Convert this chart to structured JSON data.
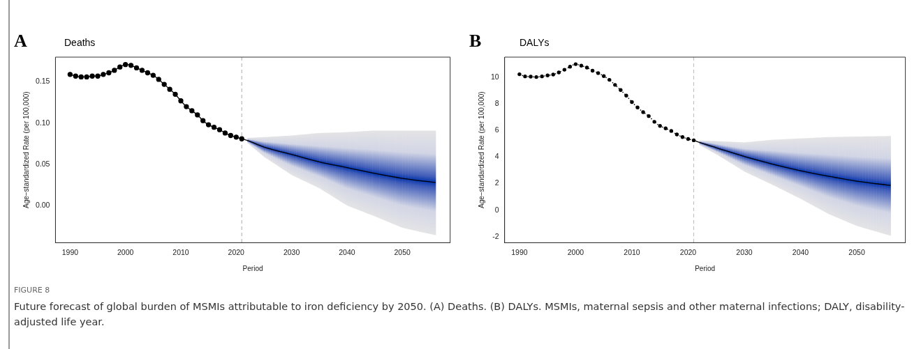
{
  "chart_data": [
    {
      "type": "line",
      "title": "Deaths",
      "xlabel": "Period",
      "ylabel": "Age−standardized Rate (per 100,000)",
      "annotations": [
        "A",
        "FIGURE 8",
        "Future forecast of global burden of MSMIs attributable to iron deficiency by 2050. (A) Deaths. (B) DALYs. MSMIs, maternal sepsis and other maternal infections; DALY, disability-adjusted life year."
      ],
      "series": [
        {
          "color": "#000000",
          "marker": "circle",
          "line_style": "solid",
          "x": [
            1990,
            1991,
            1992,
            1993,
            1994,
            1995,
            1996,
            1997,
            1998,
            1999,
            2000,
            2001,
            2002,
            2003,
            2004,
            2005,
            2006,
            2007,
            2008,
            2009,
            2010,
            2011,
            2012,
            2013,
            2014,
            2015,
            2016,
            2017,
            2018,
            2019,
            2020,
            2021
          ],
          "values": [
            0.159,
            0.157,
            0.156,
            0.156,
            0.157,
            0.157,
            0.159,
            0.161,
            0.164,
            0.168,
            0.171,
            0.17,
            0.167,
            0.164,
            0.161,
            0.158,
            0.153,
            0.147,
            0.141,
            0.135,
            0.127,
            0.12,
            0.115,
            0.11,
            0.103,
            0.098,
            0.095,
            0.092,
            0.088,
            0.085,
            0.083,
            0.081
          ]
        },
        {
          "color": "#000000",
          "marker": "none",
          "line_style": "solid",
          "x": [
            2021,
            2022,
            2025,
            2030,
            2035,
            2040,
            2045,
            2050,
            2056
          ],
          "values": [
            0.081,
            0.079,
            0.071,
            0.062,
            0.053,
            0.046,
            0.039,
            0.033,
            0.028
          ],
          "lower": [
            null,
            0.076,
            0.059,
            0.037,
            0.021,
            0.0,
            -0.013,
            -0.027,
            -0.036
          ],
          "upper": [
            null,
            0.082,
            0.083,
            0.085,
            0.088,
            0.089,
            0.091,
            0.091,
            0.091
          ]
        }
      ],
      "xlim": [
        1987.36,
        2058.64
      ],
      "xticks": [
        1990,
        2000,
        2010,
        2020,
        2030,
        2040,
        2050
      ],
      "ylim": [
        -0.045,
        0.18
      ],
      "yticks": [
        {
          "value": 0,
          "label": "0.00"
        },
        {
          "value": 0.05,
          "label": "0.05"
        },
        {
          "value": 0.1,
          "label": "0.10"
        },
        {
          "value": 0.15,
          "label": "0.15"
        }
      ],
      "ref_lines": [
        {
          "axis": "x",
          "value": 2021,
          "color": "#aaaaaa",
          "line_style": "dashed"
        }
      ],
      "grid": false,
      "legend": false
    },
    {
      "type": "line",
      "title": "DALYs",
      "xlabel": "Period",
      "ylabel": "Age−standardized Rate (per 100,000)",
      "annotations": [
        "B"
      ],
      "series": [
        {
          "color": "#000000",
          "marker": "circle",
          "line_style": "dotted",
          "x": [
            1990,
            1991,
            1992,
            1993,
            1994,
            1995,
            1996,
            1997,
            1998,
            1999,
            2000,
            2001,
            2002,
            2003,
            2004,
            2005,
            2006,
            2007,
            2008,
            2009,
            2010,
            2011,
            2012,
            2013,
            2014,
            2015,
            2016,
            2017,
            2018,
            2019,
            2020,
            2021
          ],
          "values": [
            10.23,
            10.07,
            10.05,
            10.02,
            10.07,
            10.14,
            10.21,
            10.37,
            10.57,
            10.8,
            10.99,
            10.88,
            10.73,
            10.5,
            10.32,
            10.09,
            9.81,
            9.43,
            9.04,
            8.62,
            8.14,
            7.73,
            7.38,
            7.08,
            6.65,
            6.34,
            6.16,
            5.96,
            5.7,
            5.5,
            5.36,
            5.26
          ]
        },
        {
          "color": "#000000",
          "marker": "none",
          "line_style": "solid",
          "x": [
            2021,
            2022,
            2025,
            2030,
            2035,
            2040,
            2045,
            2050,
            2056
          ],
          "values": [
            5.26,
            5.1,
            4.7,
            4.04,
            3.47,
            2.97,
            2.55,
            2.18,
            1.86
          ],
          "lower": [
            null,
            4.9,
            4.2,
            2.9,
            1.9,
            0.85,
            -0.3,
            -1.19,
            -1.93
          ],
          "upper": [
            null,
            5.25,
            5.2,
            5.1,
            5.3,
            5.4,
            5.5,
            5.54,
            5.58
          ]
        }
      ],
      "xlim": [
        1987.36,
        2058.64
      ],
      "xticks": [
        1990,
        2000,
        2010,
        2020,
        2030,
        2040,
        2050
      ],
      "ylim": [
        -2.45,
        11.52
      ],
      "yticks": [
        -2,
        0,
        2,
        4,
        6,
        8,
        10
      ],
      "ref_lines": [
        {
          "axis": "x",
          "value": 2021,
          "color": "#bbbbbb",
          "line_style": "dashed"
        }
      ],
      "grid": false,
      "legend": false
    }
  ]
}
